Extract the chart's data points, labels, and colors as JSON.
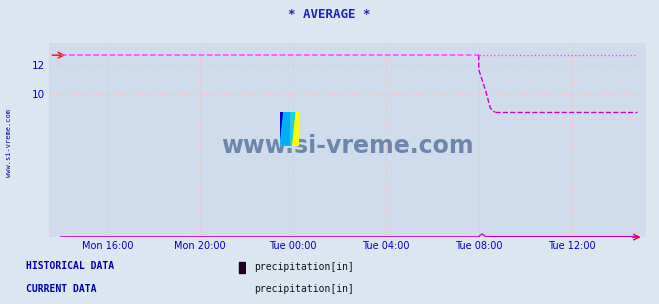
{
  "title": "* AVERAGE *",
  "title_color": "#2222bb",
  "bg_color": "#dce6f0",
  "plot_bg_color": "#d0dcec",
  "grid_color": "#ffb8b8",
  "xlabel_ticks": [
    "Mon 16:00",
    "Mon 20:00",
    "Tue 00:00",
    "Tue 04:00",
    "Tue 08:00",
    "Tue 12:00"
  ],
  "xtick_pos": [
    2,
    6,
    10,
    14,
    18,
    22
  ],
  "yticks": [
    10,
    12
  ],
  "ylim_max": 13.6,
  "xlim_min": -0.5,
  "xlim_max": 25.2,
  "hist_color": "#ff44ff",
  "curr_color": "#cc00cc",
  "watermark": "www.si-vreme.com",
  "watermark_color": "#2a4e82",
  "hist_label": "precipitation[in]",
  "curr_label": "precipitation[in]",
  "hist_label_text": "HISTORICAL DATA",
  "curr_label_text": "CURRENT DATA",
  "label_color": "#0000aa",
  "axis_color": "#0000cc",
  "top_value": 12.72,
  "mid_value": 8.72,
  "low_value": 0.04,
  "drop_x": 18.0,
  "x_end": 24.8,
  "logo_colors": [
    "#ffff00",
    "#00aaff",
    "#0000cc"
  ]
}
